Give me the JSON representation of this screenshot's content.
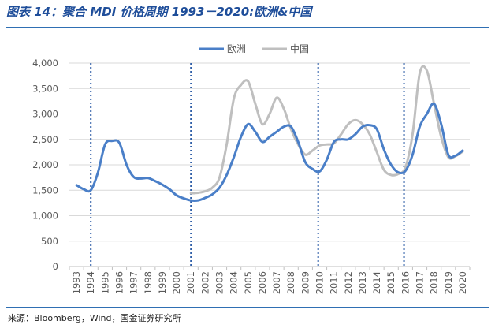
{
  "header": {
    "title": "图表 14：聚合 MDI 价格周期 1993－2020:欧洲&中国"
  },
  "footer": {
    "source": "来源：Bloomberg，Wind，国金证券研究所"
  },
  "chart_data": {
    "type": "line",
    "title": "聚合 MDI 价格周期 1993－2020:欧洲&中国",
    "xlabel": "",
    "ylabel": "",
    "ylim": [
      0,
      4000
    ],
    "yticks": [
      "0",
      "500",
      "1,000",
      "1,500",
      "2,000",
      "2,500",
      "3,000",
      "3,500",
      "4,000"
    ],
    "ytick_values": [
      0,
      500,
      1000,
      1500,
      2000,
      2500,
      3000,
      3500,
      4000
    ],
    "categories": [
      "1993",
      "1994",
      "1995",
      "1996",
      "1997",
      "1998",
      "1999",
      "2000",
      "2001",
      "2002",
      "2003",
      "2004",
      "2005",
      "2006",
      "2007",
      "2008",
      "2009",
      "2010",
      "2011",
      "2012",
      "2013",
      "2014",
      "2015",
      "2016",
      "2017",
      "2018",
      "2019",
      "2020"
    ],
    "legend_position": "top-center",
    "grid": "horizontal",
    "cycle_markers": [
      1994.0,
      2001.0,
      2009.9,
      2015.9
    ],
    "series": [
      {
        "name": "欧洲",
        "color": "#4a7fc8",
        "x": [
          1993.0,
          1993.5,
          1994.0,
          1994.5,
          1995.0,
          1995.5,
          1996.0,
          1996.5,
          1997.0,
          1997.5,
          1998.0,
          1998.5,
          1999.0,
          1999.5,
          2000.0,
          2000.5,
          2001.0,
          2001.5,
          2002.0,
          2002.5,
          2003.0,
          2003.5,
          2004.0,
          2004.5,
          2005.0,
          2005.5,
          2006.0,
          2006.5,
          2007.0,
          2007.5,
          2008.0,
          2008.5,
          2009.0,
          2009.5,
          2010.0,
          2010.5,
          2011.0,
          2011.5,
          2012.0,
          2012.5,
          2013.0,
          2013.5,
          2014.0,
          2014.5,
          2015.0,
          2015.5,
          2016.0,
          2016.5,
          2017.0,
          2017.5,
          2018.0,
          2018.5,
          2019.0,
          2019.5,
          2020.0
        ],
        "values": [
          1600,
          1520,
          1500,
          1850,
          2400,
          2470,
          2430,
          2000,
          1760,
          1730,
          1740,
          1680,
          1610,
          1520,
          1400,
          1340,
          1300,
          1300,
          1350,
          1420,
          1550,
          1800,
          2150,
          2550,
          2800,
          2650,
          2450,
          2550,
          2650,
          2750,
          2750,
          2450,
          2050,
          1920,
          1870,
          2100,
          2450,
          2500,
          2500,
          2600,
          2750,
          2780,
          2700,
          2300,
          2000,
          1850,
          1880,
          2200,
          2750,
          3000,
          3200,
          2800,
          2200,
          2180,
          2280
        ]
      },
      {
        "name": "中国",
        "color": "#bfbfbf",
        "x": [
          2001.0,
          2001.5,
          2002.0,
          2002.5,
          2003.0,
          2003.5,
          2004.0,
          2004.5,
          2005.0,
          2005.5,
          2006.0,
          2006.5,
          2007.0,
          2007.5,
          2008.0,
          2008.5,
          2009.0,
          2009.5,
          2010.0,
          2010.5,
          2011.0,
          2011.5,
          2012.0,
          2012.5,
          2013.0,
          2013.5,
          2014.0,
          2014.5,
          2015.0,
          2015.5,
          2016.0,
          2016.5,
          2017.0,
          2017.5,
          2018.0,
          2018.5,
          2019.0,
          2019.5,
          2020.0
        ],
        "values": [
          1440,
          1450,
          1480,
          1550,
          1750,
          2400,
          3300,
          3570,
          3640,
          3200,
          2800,
          3000,
          3320,
          3100,
          2700,
          2400,
          2200,
          2280,
          2380,
          2400,
          2420,
          2600,
          2800,
          2880,
          2800,
          2600,
          2250,
          1900,
          1800,
          1820,
          1950,
          2600,
          3800,
          3850,
          3200,
          2550,
          2150,
          2170,
          2260
        ]
      }
    ]
  }
}
